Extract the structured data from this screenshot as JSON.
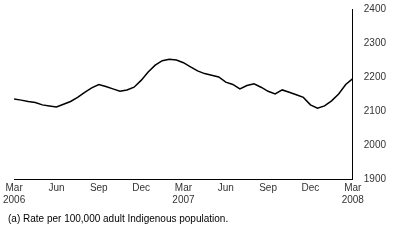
{
  "chart_data": {
    "type": "line",
    "categories": [
      "Mar\n2006",
      null,
      null,
      null,
      null,
      null,
      "Jun",
      null,
      null,
      null,
      null,
      null,
      "Sep",
      null,
      null,
      null,
      null,
      null,
      "Dec",
      null,
      null,
      null,
      null,
      null,
      "Mar\n2007",
      null,
      null,
      null,
      null,
      null,
      "Jun",
      null,
      null,
      null,
      null,
      null,
      "Sep",
      null,
      null,
      null,
      null,
      null,
      "Dec",
      null,
      null,
      null,
      null,
      null,
      "Mar\n2008"
    ],
    "values": [
      2135,
      2132,
      2128,
      2125,
      2118,
      2115,
      2112,
      2120,
      2128,
      2140,
      2155,
      2168,
      2178,
      2172,
      2165,
      2158,
      2162,
      2170,
      2190,
      2215,
      2235,
      2248,
      2252,
      2250,
      2242,
      2230,
      2218,
      2210,
      2205,
      2200,
      2185,
      2178,
      2165,
      2175,
      2180,
      2170,
      2158,
      2150,
      2162,
      2155,
      2148,
      2140,
      2118,
      2108,
      2115,
      2130,
      2150,
      2178,
      2195
    ],
    "color": "#000000",
    "ylim": [
      1900,
      2400
    ],
    "yticks": [
      1900,
      2000,
      2100,
      2200,
      2300,
      2400
    ],
    "grid": false,
    "annotations": [
      "(a) Rate per 100,000 adult Indigenous population."
    ]
  }
}
